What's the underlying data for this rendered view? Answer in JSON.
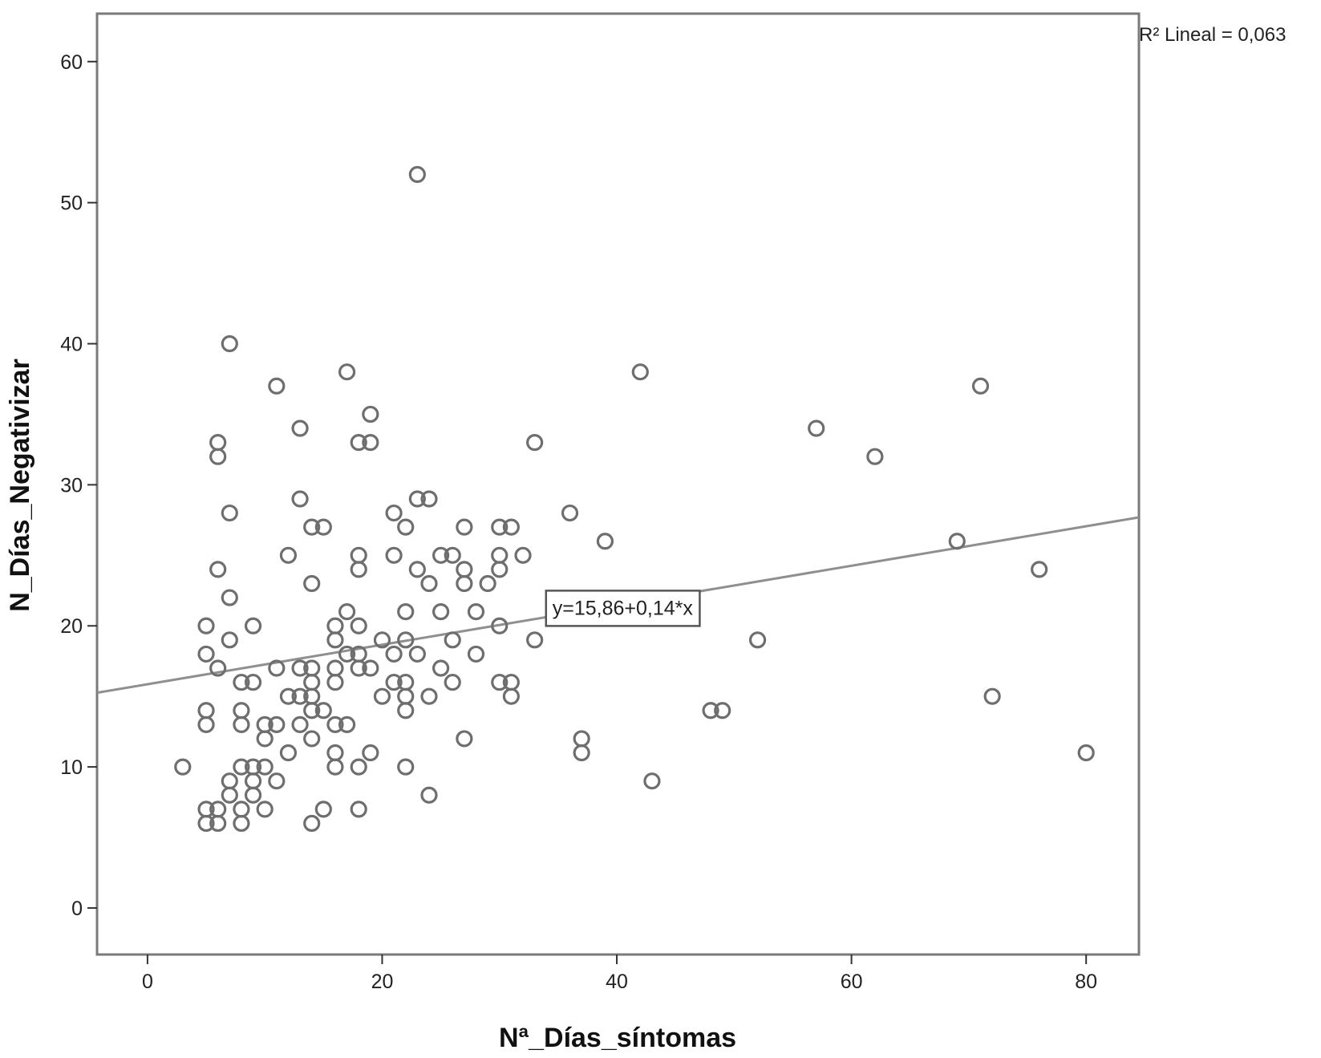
{
  "chart_data": {
    "type": "scatter",
    "xlabel": "Nª_Días_síntomas",
    "ylabel": "N_Días_Negativizar",
    "xlim": [
      -4.3,
      84.5
    ],
    "ylim": [
      -3.3,
      63.4
    ],
    "x_ticks": [
      0,
      20,
      40,
      60,
      80
    ],
    "y_ticks": [
      0,
      10,
      20,
      30,
      40,
      50,
      60
    ],
    "grid": false,
    "fit_line": {
      "intercept": 15.86,
      "slope": 0.14,
      "equation_label": "y=15,86+0,14*x",
      "equation_anchor": [
        40.5,
        21.3
      ]
    },
    "r2_label": "R² Lineal = 0,063",
    "colors": {
      "marker": "#6e6e6e",
      "line": "#8f8f8f",
      "frame": "#7a7a7a"
    },
    "points": [
      [
        23,
        52
      ],
      [
        7,
        40
      ],
      [
        17,
        38
      ],
      [
        42,
        38
      ],
      [
        11,
        37
      ],
      [
        71,
        37
      ],
      [
        19,
        35
      ],
      [
        13,
        34
      ],
      [
        57,
        34
      ],
      [
        6,
        33
      ],
      [
        18,
        33
      ],
      [
        19,
        33
      ],
      [
        33,
        33
      ],
      [
        6,
        32
      ],
      [
        62,
        32
      ],
      [
        13,
        29
      ],
      [
        23,
        29
      ],
      [
        24,
        29
      ],
      [
        7,
        28
      ],
      [
        21,
        28
      ],
      [
        36,
        28
      ],
      [
        14,
        27
      ],
      [
        15,
        27
      ],
      [
        22,
        27
      ],
      [
        27,
        27
      ],
      [
        30,
        27
      ],
      [
        31,
        27
      ],
      [
        39,
        26
      ],
      [
        69,
        26
      ],
      [
        12,
        25
      ],
      [
        18,
        25
      ],
      [
        21,
        25
      ],
      [
        25,
        25
      ],
      [
        26,
        25
      ],
      [
        30,
        25
      ],
      [
        32,
        25
      ],
      [
        6,
        24
      ],
      [
        18,
        24
      ],
      [
        23,
        24
      ],
      [
        27,
        24
      ],
      [
        30,
        24
      ],
      [
        76,
        24
      ],
      [
        14,
        23
      ],
      [
        24,
        23
      ],
      [
        27,
        23
      ],
      [
        29,
        23
      ],
      [
        7,
        22
      ],
      [
        17,
        21
      ],
      [
        22,
        21
      ],
      [
        25,
        21
      ],
      [
        28,
        21
      ],
      [
        5,
        20
      ],
      [
        9,
        20
      ],
      [
        16,
        20
      ],
      [
        18,
        20
      ],
      [
        30,
        20
      ],
      [
        7,
        19
      ],
      [
        16,
        19
      ],
      [
        20,
        19
      ],
      [
        22,
        19
      ],
      [
        26,
        19
      ],
      [
        33,
        19
      ],
      [
        52,
        19
      ],
      [
        5,
        18
      ],
      [
        17,
        18
      ],
      [
        18,
        18
      ],
      [
        21,
        18
      ],
      [
        23,
        18
      ],
      [
        28,
        18
      ],
      [
        6,
        17
      ],
      [
        11,
        17
      ],
      [
        13,
        17
      ],
      [
        14,
        17
      ],
      [
        16,
        17
      ],
      [
        18,
        17
      ],
      [
        19,
        17
      ],
      [
        25,
        17
      ],
      [
        8,
        16
      ],
      [
        9,
        16
      ],
      [
        14,
        16
      ],
      [
        16,
        16
      ],
      [
        21,
        16
      ],
      [
        22,
        16
      ],
      [
        26,
        16
      ],
      [
        30,
        16
      ],
      [
        31,
        16
      ],
      [
        12,
        15
      ],
      [
        13,
        15
      ],
      [
        14,
        15
      ],
      [
        20,
        15
      ],
      [
        22,
        15
      ],
      [
        24,
        15
      ],
      [
        31,
        15
      ],
      [
        72,
        15
      ],
      [
        5,
        14
      ],
      [
        8,
        14
      ],
      [
        14,
        14
      ],
      [
        15,
        14
      ],
      [
        22,
        14
      ],
      [
        48,
        14
      ],
      [
        49,
        14
      ],
      [
        5,
        13
      ],
      [
        8,
        13
      ],
      [
        10,
        13
      ],
      [
        11,
        13
      ],
      [
        13,
        13
      ],
      [
        16,
        13
      ],
      [
        17,
        13
      ],
      [
        10,
        12
      ],
      [
        14,
        12
      ],
      [
        27,
        12
      ],
      [
        37,
        12
      ],
      [
        12,
        11
      ],
      [
        16,
        11
      ],
      [
        19,
        11
      ],
      [
        37,
        11
      ],
      [
        80,
        11
      ],
      [
        3,
        10
      ],
      [
        8,
        10
      ],
      [
        9,
        10
      ],
      [
        10,
        10
      ],
      [
        16,
        10
      ],
      [
        18,
        10
      ],
      [
        22,
        10
      ],
      [
        7,
        9
      ],
      [
        9,
        9
      ],
      [
        11,
        9
      ],
      [
        43,
        9
      ],
      [
        7,
        8
      ],
      [
        9,
        8
      ],
      [
        24,
        8
      ],
      [
        5,
        7
      ],
      [
        6,
        7
      ],
      [
        8,
        7
      ],
      [
        10,
        7
      ],
      [
        15,
        7
      ],
      [
        18,
        7
      ],
      [
        5,
        6
      ],
      [
        6,
        6
      ],
      [
        8,
        6
      ],
      [
        14,
        6
      ]
    ]
  }
}
